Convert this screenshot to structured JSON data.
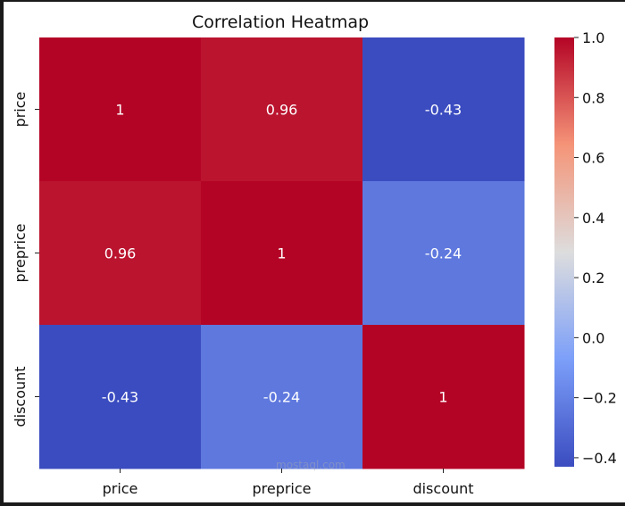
{
  "chart_data": {
    "type": "heatmap",
    "title": "Correlation Heatmap",
    "x_categories": [
      "price",
      "preprice",
      "discount"
    ],
    "y_categories": [
      "price",
      "preprice",
      "discount"
    ],
    "values": [
      [
        1,
        0.96,
        -0.43
      ],
      [
        0.96,
        1,
        -0.24
      ],
      [
        -0.43,
        -0.24,
        1
      ]
    ],
    "annotations": [
      [
        "1",
        "0.96",
        "-0.43"
      ],
      [
        "0.96",
        "1",
        "-0.24"
      ],
      [
        "-0.43",
        "-0.24",
        "1"
      ]
    ],
    "colormap": "coolwarm",
    "colorbar": {
      "range": [
        -0.43,
        1.0
      ],
      "ticks": [
        1.0,
        0.8,
        0.6,
        0.4,
        0.2,
        0.0,
        -0.2,
        -0.4
      ],
      "tick_labels": [
        "1.0",
        "0.8",
        "0.6",
        "0.4",
        "0.2",
        "0.0",
        "−0.2",
        "−0.4"
      ]
    },
    "xlabel": "",
    "ylabel": ""
  },
  "watermark": "mostaql.com"
}
